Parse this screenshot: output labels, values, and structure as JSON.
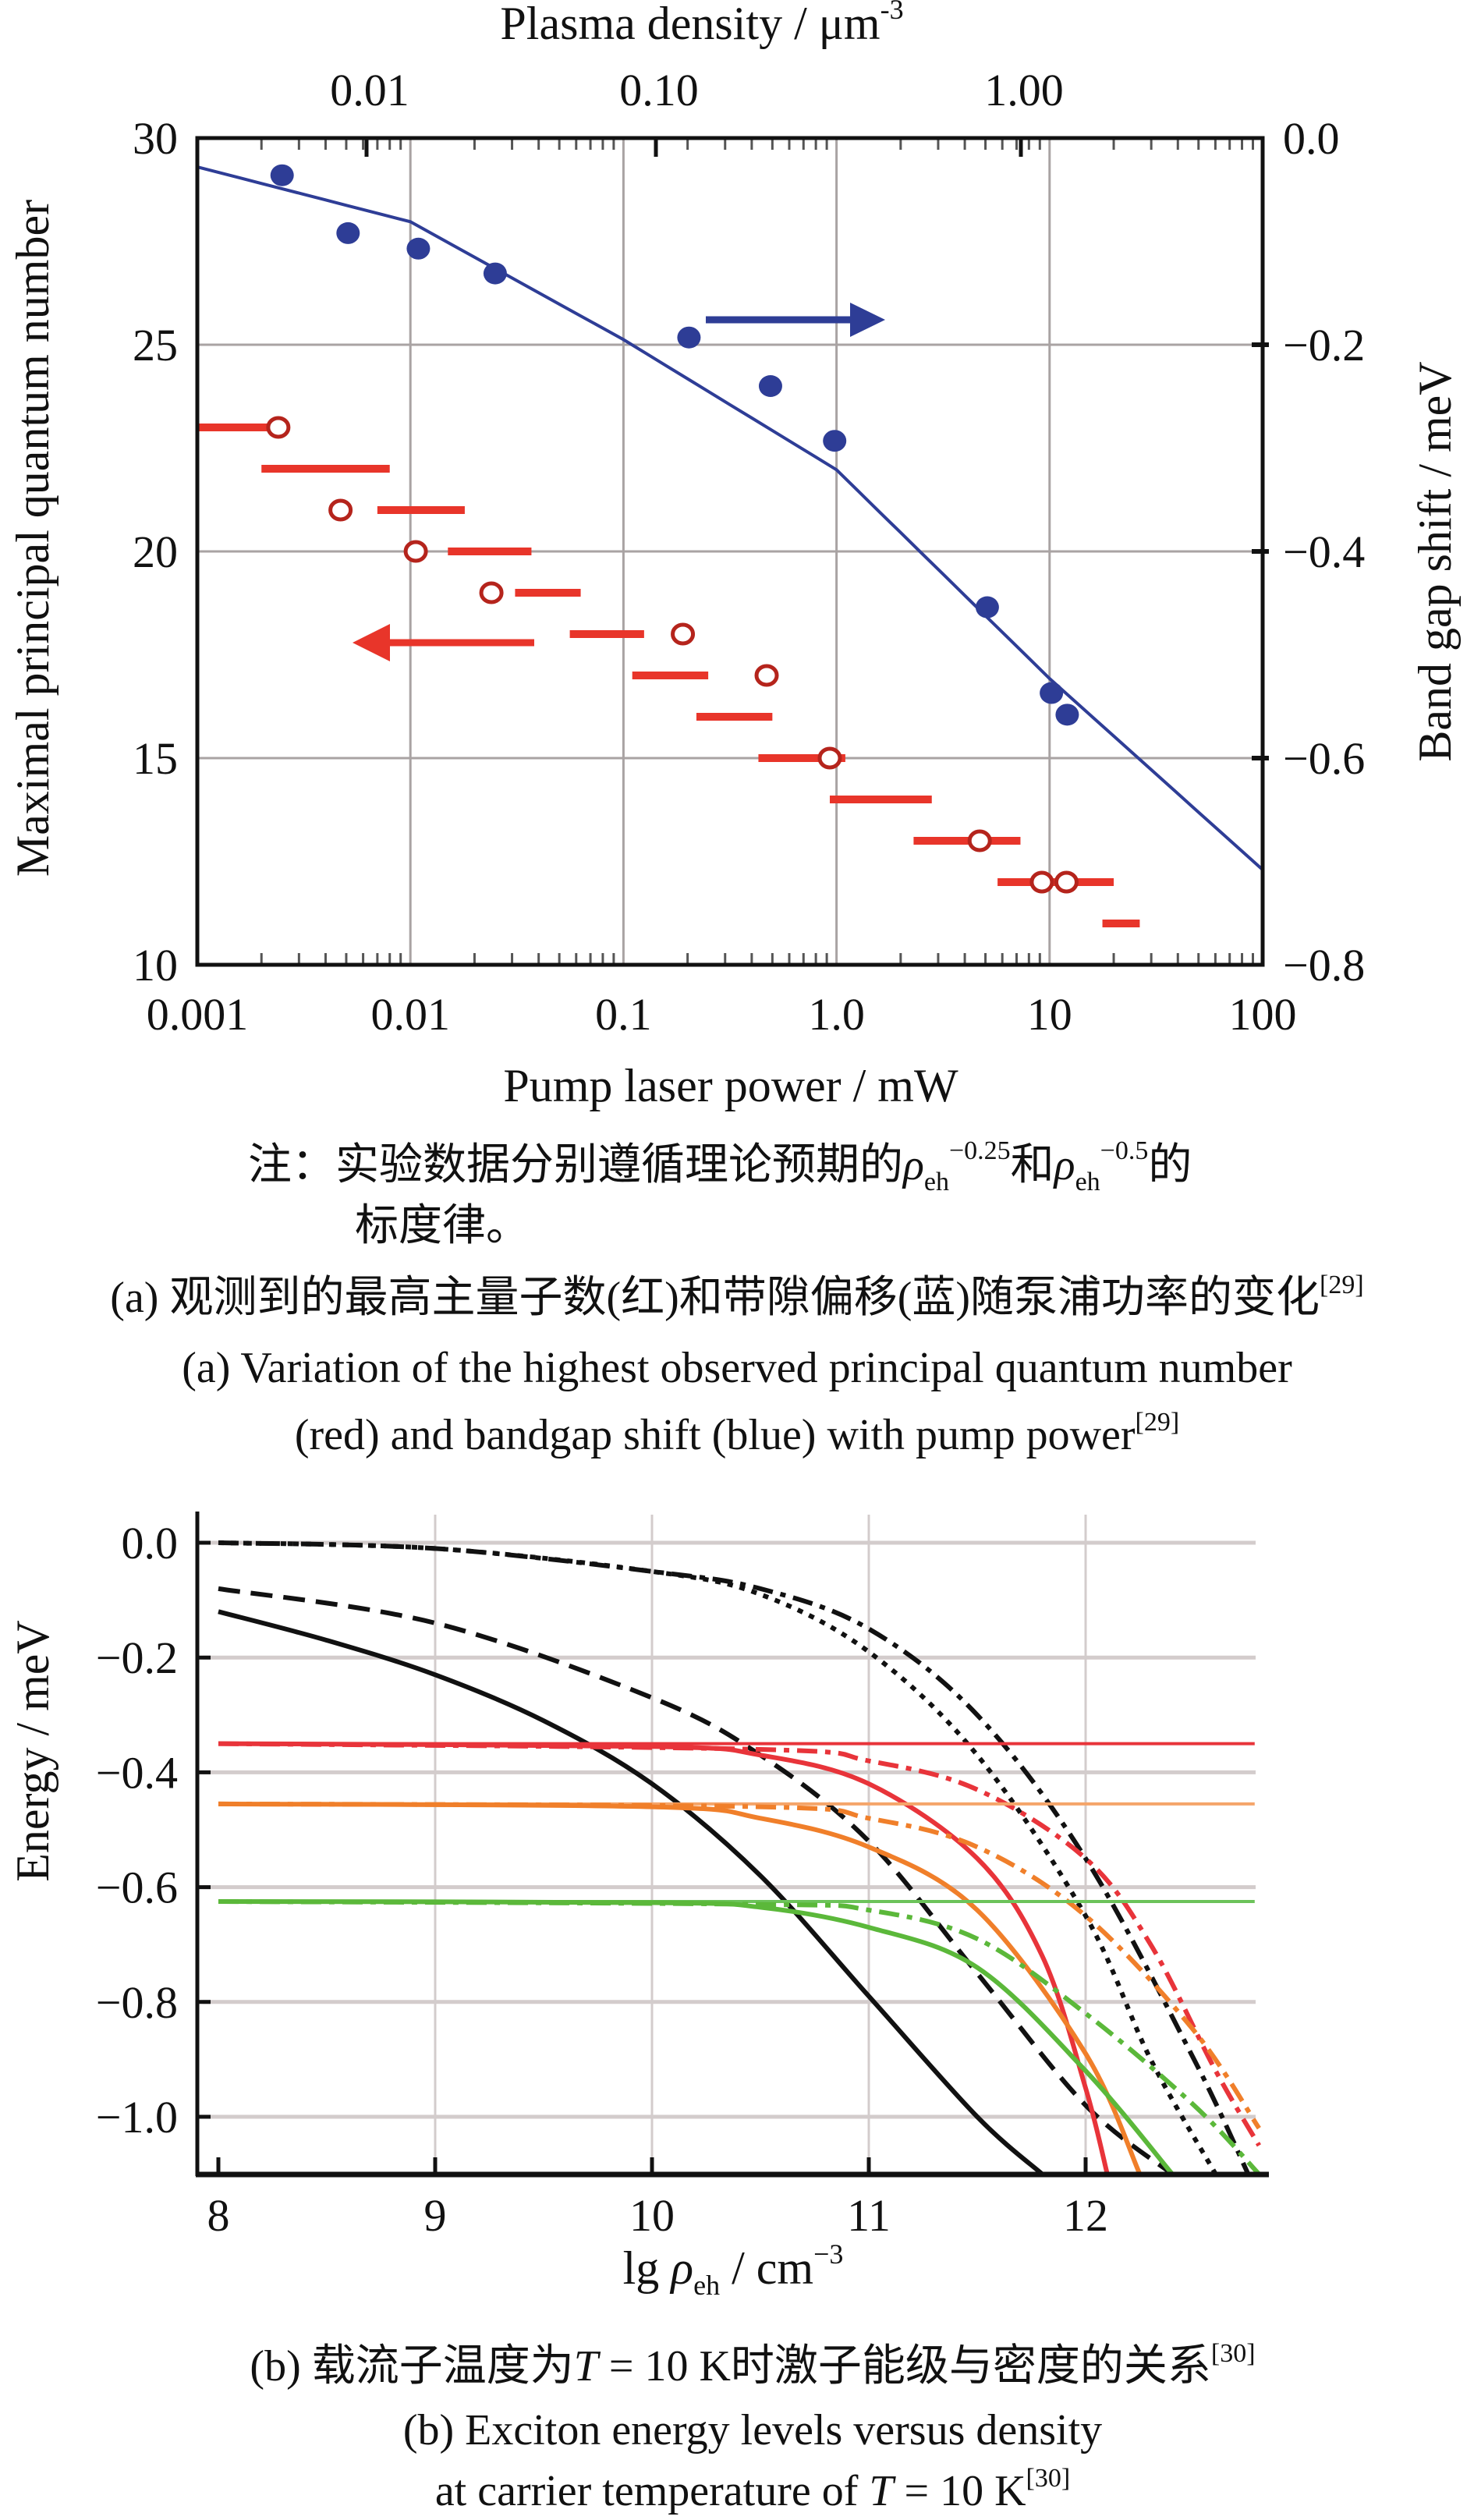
{
  "chart_data": [
    {
      "type": "scatter",
      "panel": "a",
      "title": "",
      "xlabel": "Pump laser power / mW",
      "xscale": "log",
      "xlim": [
        0.001,
        100
      ],
      "xticks": [
        "0.001",
        "0.01",
        "0.1",
        "1.0",
        "10",
        "100"
      ],
      "top_xlabel": {
        "text": "Plasma density / μm",
        "sup": "-3"
      },
      "top_xticks": [
        "0.01",
        "0.10",
        "1.00"
      ],
      "ylabel": "Maximal principal quantum number",
      "ylim": [
        10,
        30
      ],
      "yticks": [
        "30",
        "25",
        "20",
        "15",
        "10"
      ],
      "y2label": "Band gap shift / meV",
      "y2lim": [
        -0.8,
        0.0
      ],
      "y2ticks": [
        "0.0",
        "−0.2",
        "−0.4",
        "−0.6",
        "−0.8"
      ],
      "grid": true,
      "colors": {
        "blue": "#2e3d96",
        "red": "#e8352a",
        "red_circle": "#b5241c"
      },
      "band_gap_points": {
        "axis": "right",
        "x": [
          0.0025,
          0.0051,
          0.0109,
          0.025,
          0.203,
          0.49,
          0.98,
          5.1,
          10.2,
          12.1
        ],
        "y": [
          -0.036,
          -0.092,
          -0.107,
          -0.131,
          -0.193,
          -0.24,
          -0.293,
          -0.454,
          -0.537,
          -0.558
        ]
      },
      "band_gap_fit": {
        "axis": "right",
        "x": [
          0.001,
          0.01,
          0.1,
          1.0,
          10,
          100
        ],
        "y": [
          -0.028,
          -0.081,
          -0.195,
          -0.321,
          -0.523,
          -0.708
        ]
      },
      "quantum_number_circles": {
        "axis": "left",
        "x": [
          0.0024,
          0.0047,
          0.0106,
          0.024,
          0.19,
          0.47,
          0.93,
          4.7,
          9.2,
          12
        ],
        "y": [
          23,
          21,
          20,
          19,
          18,
          17,
          15,
          13,
          12,
          12
        ]
      },
      "quantum_number_bars": [
        {
          "n": 23,
          "x": [
            0.001,
            0.0024
          ]
        },
        {
          "n": 22,
          "x": [
            0.002,
            0.008
          ]
        },
        {
          "n": 21,
          "x": [
            0.007,
            0.018
          ]
        },
        {
          "n": 20,
          "x": [
            0.015,
            0.037
          ]
        },
        {
          "n": 19,
          "x": [
            0.031,
            0.063
          ]
        },
        {
          "n": 18,
          "x": [
            0.056,
            0.125
          ]
        },
        {
          "n": 17,
          "x": [
            0.11,
            0.25
          ]
        },
        {
          "n": 16,
          "x": [
            0.22,
            0.5
          ]
        },
        {
          "n": 15,
          "x": [
            0.43,
            1.1
          ]
        },
        {
          "n": 14,
          "x": [
            0.93,
            2.8
          ]
        },
        {
          "n": 13,
          "x": [
            2.3,
            7.3
          ]
        },
        {
          "n": 12,
          "x": [
            5.7,
            20
          ]
        },
        {
          "n": 11,
          "x": [
            17.7,
            26.5
          ]
        }
      ],
      "note": {
        "prefix": "注：实验数据分别遵循理论预期的",
        "rho": "ρ",
        "sub": "eh",
        "sup1": "−0.25",
        "mid": "和",
        "sup2": "−0.5",
        "suffix": "的",
        "line2": "标度律。"
      },
      "caption_cn": {
        "text": "(a) 观测到的最高主量子数(红)和带隙偏移(蓝)随泵浦功率的变化",
        "ref": "[29]"
      },
      "caption_en_1": "(a) Variation of the highest observed principal quantum number",
      "caption_en_2": {
        "text": "(red) and bandgap shift (blue) with pump power",
        "ref": "[29]"
      }
    },
    {
      "type": "line",
      "panel": "b",
      "title": "",
      "xlabel": {
        "prefix": "lg ",
        "rho": "ρ",
        "sub": "eh",
        "unit": " / cm",
        "sup": "−3"
      },
      "xlim": [
        7.95,
        12.82
      ],
      "xticks": [
        "8",
        "9",
        "10",
        "11",
        "12"
      ],
      "ylabel": "Energy / meV",
      "ylim": [
        -1.1,
        0.05
      ],
      "yticks": [
        "0.0",
        "−0.2",
        "−0.4",
        "−0.6",
        "−0.8",
        "−1.0"
      ],
      "grid": true,
      "series": [
        {
          "color": "#111111",
          "style": "solid",
          "x": [
            8,
            8.5,
            9,
            9.5,
            10,
            10.5,
            11,
            11.5,
            11.8
          ],
          "y": [
            -0.12,
            -0.17,
            -0.23,
            -0.31,
            -0.42,
            -0.58,
            -0.79,
            -1.0,
            -1.1
          ]
        },
        {
          "color": "#111111",
          "style": "dashed",
          "x": [
            8,
            9,
            10,
            10.5,
            11,
            11.5,
            12,
            12.4
          ],
          "y": [
            -0.08,
            -0.14,
            -0.27,
            -0.37,
            -0.52,
            -0.75,
            -0.98,
            -1.1
          ]
        },
        {
          "color": "#111111",
          "style": "dotted",
          "x": [
            8,
            9,
            10,
            10.5,
            11,
            11.5,
            12,
            12.3,
            12.6
          ],
          "y": [
            0.0,
            -0.01,
            -0.05,
            -0.09,
            -0.19,
            -0.37,
            -0.65,
            -0.9,
            -1.1
          ]
        },
        {
          "color": "#111111",
          "style": "dashdot",
          "x": [
            8,
            9,
            10,
            10.5,
            11,
            11.5,
            12,
            12.5,
            12.75
          ],
          "y": [
            0.0,
            -0.01,
            -0.05,
            -0.08,
            -0.15,
            -0.3,
            -0.55,
            -0.9,
            -1.1
          ]
        },
        {
          "color": "#e8343a",
          "style": "thin",
          "x": [
            8,
            12.78
          ],
          "y": [
            -0.35,
            -0.35
          ]
        },
        {
          "color": "#e8343a",
          "style": "solid",
          "x": [
            8,
            10,
            10.5,
            11,
            11.5,
            11.8,
            12,
            12.1
          ],
          "y": [
            -0.35,
            -0.355,
            -0.37,
            -0.42,
            -0.55,
            -0.72,
            -0.95,
            -1.1
          ]
        },
        {
          "color": "#e8343a",
          "style": "dashdot",
          "x": [
            8,
            10.5,
            11,
            11.5,
            12,
            12.3,
            12.6,
            12.8
          ],
          "y": [
            -0.35,
            -0.36,
            -0.38,
            -0.43,
            -0.55,
            -0.7,
            -0.92,
            -1.05
          ]
        },
        {
          "color": "#f5a56a",
          "style": "thin",
          "x": [
            8,
            12.78
          ],
          "y": [
            -0.455,
            -0.455
          ]
        },
        {
          "color": "#f07f2a",
          "style": "solid",
          "x": [
            8,
            10,
            10.5,
            11,
            11.5,
            12,
            12.25
          ],
          "y": [
            -0.455,
            -0.46,
            -0.48,
            -0.53,
            -0.64,
            -0.89,
            -1.1
          ]
        },
        {
          "color": "#f07f2a",
          "style": "dashdot",
          "x": [
            8,
            10.5,
            11,
            11.5,
            12,
            12.5,
            12.8
          ],
          "y": [
            -0.455,
            -0.46,
            -0.48,
            -0.53,
            -0.65,
            -0.85,
            -1.02
          ]
        },
        {
          "color": "#6cc35a",
          "style": "thin",
          "x": [
            8,
            12.78
          ],
          "y": [
            -0.625,
            -0.625
          ]
        },
        {
          "color": "#5bb83a",
          "style": "solid",
          "x": [
            8,
            10,
            10.5,
            11,
            11.5,
            12,
            12.4
          ],
          "y": [
            -0.625,
            -0.627,
            -0.635,
            -0.67,
            -0.74,
            -0.92,
            -1.1
          ]
        },
        {
          "color": "#5bb83a",
          "style": "dashdot",
          "x": [
            8,
            10.5,
            11,
            11.5,
            12,
            12.5,
            12.8
          ],
          "y": [
            -0.625,
            -0.63,
            -0.64,
            -0.69,
            -0.82,
            -0.98,
            -1.1
          ]
        }
      ],
      "caption_cn": {
        "pre": "(b) 载流子温度为",
        "T": "T",
        "mid": " = 10 K时激子能级与密度的关系",
        "ref": "[30]"
      },
      "caption_en_1": "(b) Exciton energy levels versus density",
      "caption_en_2": {
        "pre": "at carrier temperature of ",
        "T": "T",
        "mid": " = 10 K",
        "ref": "[30]"
      }
    }
  ]
}
